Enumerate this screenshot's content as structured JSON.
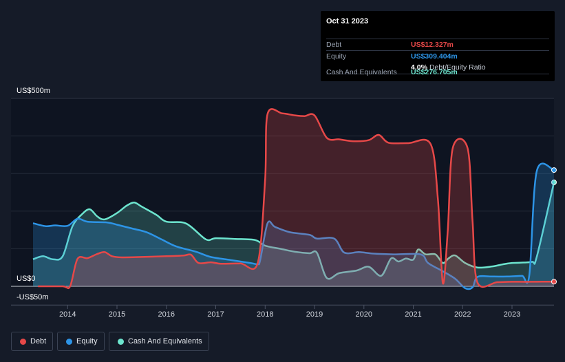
{
  "tooltip": {
    "date": "Oct 31 2023",
    "rows": [
      {
        "label": "Debt",
        "value": "US$12.327m",
        "color": "#e64848"
      },
      {
        "label": "Equity",
        "value": "US$309.404m",
        "color": "#2d94e6"
      },
      {
        "ratio_value": "4.0%",
        "ratio_label": "Debt/Equity Ratio"
      },
      {
        "label": "Cash And Equivalents",
        "value": "US$276.705m",
        "color": "#6de5cf"
      }
    ]
  },
  "legend": [
    {
      "label": "Debt",
      "color": "#e64848"
    },
    {
      "label": "Equity",
      "color": "#2d94e6"
    },
    {
      "label": "Cash And Equivalents",
      "color": "#6de5cf"
    }
  ],
  "chart_data": {
    "type": "area",
    "title": "",
    "xlabel": "",
    "ylabel": "",
    "y_axis_labels": [
      "US$500m",
      "US$0",
      "-US$50m"
    ],
    "x_tick_labels": [
      "2014",
      "2015",
      "2016",
      "2017",
      "2018",
      "2019",
      "2020",
      "2021",
      "2022",
      "2023"
    ],
    "xlim": [
      2013.3,
      2023.85
    ],
    "ylim": [
      -50,
      500
    ],
    "grid": true,
    "series": [
      {
        "name": "Cash And Equivalents",
        "color": "#6de5cf",
        "points": [
          [
            2013.3,
            72
          ],
          [
            2013.5,
            80
          ],
          [
            2013.7,
            72
          ],
          [
            2013.9,
            80
          ],
          [
            2014.1,
            160
          ],
          [
            2014.3,
            193
          ],
          [
            2014.45,
            205
          ],
          [
            2014.6,
            186
          ],
          [
            2014.75,
            178
          ],
          [
            2015.0,
            195
          ],
          [
            2015.2,
            215
          ],
          [
            2015.35,
            223
          ],
          [
            2015.5,
            212
          ],
          [
            2015.8,
            190
          ],
          [
            2016.0,
            172
          ],
          [
            2016.4,
            167
          ],
          [
            2016.8,
            125
          ],
          [
            2017.0,
            128
          ],
          [
            2017.4,
            126
          ],
          [
            2017.8,
            123
          ],
          [
            2018.0,
            108
          ],
          [
            2018.3,
            100
          ],
          [
            2018.6,
            92
          ],
          [
            2018.9,
            88
          ],
          [
            2019.05,
            89
          ],
          [
            2019.25,
            22
          ],
          [
            2019.5,
            35
          ],
          [
            2019.85,
            42
          ],
          [
            2020.1,
            52
          ],
          [
            2020.35,
            28
          ],
          [
            2020.55,
            74
          ],
          [
            2020.7,
            66
          ],
          [
            2020.85,
            74
          ],
          [
            2021.0,
            71
          ],
          [
            2021.1,
            98
          ],
          [
            2021.25,
            85
          ],
          [
            2021.45,
            85
          ],
          [
            2021.6,
            62
          ],
          [
            2021.72,
            75
          ],
          [
            2021.85,
            82
          ],
          [
            2022.05,
            62
          ],
          [
            2022.3,
            50
          ],
          [
            2022.6,
            53
          ],
          [
            2022.8,
            58
          ],
          [
            2023.0,
            62
          ],
          [
            2023.4,
            65
          ],
          [
            2023.5,
            78
          ],
          [
            2023.85,
            276.7
          ]
        ]
      },
      {
        "name": "Equity",
        "color": "#2d94e6",
        "points": [
          [
            2013.3,
            168
          ],
          [
            2013.55,
            160
          ],
          [
            2013.75,
            162
          ],
          [
            2014.0,
            161
          ],
          [
            2014.2,
            180
          ],
          [
            2014.4,
            172
          ],
          [
            2014.8,
            170
          ],
          [
            2015.0,
            164
          ],
          [
            2015.3,
            154
          ],
          [
            2015.6,
            144
          ],
          [
            2015.9,
            125
          ],
          [
            2016.2,
            106
          ],
          [
            2016.6,
            92
          ],
          [
            2016.9,
            78
          ],
          [
            2017.3,
            70
          ],
          [
            2017.7,
            62
          ],
          [
            2017.85,
            59
          ],
          [
            2017.9,
            70
          ],
          [
            2018.05,
            168
          ],
          [
            2018.2,
            158
          ],
          [
            2018.5,
            144
          ],
          [
            2018.9,
            137
          ],
          [
            2019.05,
            127
          ],
          [
            2019.4,
            127
          ],
          [
            2019.6,
            90
          ],
          [
            2019.9,
            91
          ],
          [
            2020.2,
            87
          ],
          [
            2020.6,
            85
          ],
          [
            2021.15,
            85
          ],
          [
            2021.3,
            62
          ],
          [
            2021.6,
            40
          ],
          [
            2021.85,
            20
          ],
          [
            2022.05,
            -5
          ],
          [
            2022.2,
            -3
          ],
          [
            2022.3,
            25
          ],
          [
            2022.6,
            26
          ],
          [
            2022.9,
            26
          ],
          [
            2023.2,
            28
          ],
          [
            2023.35,
            29
          ],
          [
            2023.5,
            306
          ],
          [
            2023.85,
            309.4
          ]
        ]
      },
      {
        "name": "Debt",
        "color": "#e64848",
        "points": [
          [
            2013.4,
            0
          ],
          [
            2013.9,
            0
          ],
          [
            2014.05,
            0
          ],
          [
            2014.2,
            73
          ],
          [
            2014.4,
            75
          ],
          [
            2014.6,
            86
          ],
          [
            2014.75,
            91
          ],
          [
            2014.9,
            80
          ],
          [
            2015.1,
            77
          ],
          [
            2015.5,
            78
          ],
          [
            2016.0,
            80
          ],
          [
            2016.35,
            82
          ],
          [
            2016.5,
            84
          ],
          [
            2016.65,
            62
          ],
          [
            2016.9,
            64
          ],
          [
            2017.1,
            60
          ],
          [
            2017.5,
            61
          ],
          [
            2017.85,
            62
          ],
          [
            2018.0,
            285
          ],
          [
            2018.05,
            459
          ],
          [
            2018.35,
            460
          ],
          [
            2018.6,
            455
          ],
          [
            2018.8,
            453
          ],
          [
            2019.0,
            455
          ],
          [
            2019.25,
            395
          ],
          [
            2019.5,
            391
          ],
          [
            2019.8,
            386
          ],
          [
            2020.1,
            389
          ],
          [
            2020.3,
            403
          ],
          [
            2020.5,
            382
          ],
          [
            2020.9,
            381
          ],
          [
            2021.35,
            379
          ],
          [
            2021.5,
            230
          ],
          [
            2021.6,
            8
          ],
          [
            2021.7,
            150
          ],
          [
            2021.8,
            368
          ],
          [
            2022.1,
            368
          ],
          [
            2022.2,
            175
          ],
          [
            2022.3,
            10
          ],
          [
            2022.7,
            11
          ],
          [
            2023.0,
            12
          ],
          [
            2023.4,
            12
          ],
          [
            2023.6,
            12.3
          ],
          [
            2023.85,
            12.3
          ]
        ]
      }
    ]
  }
}
